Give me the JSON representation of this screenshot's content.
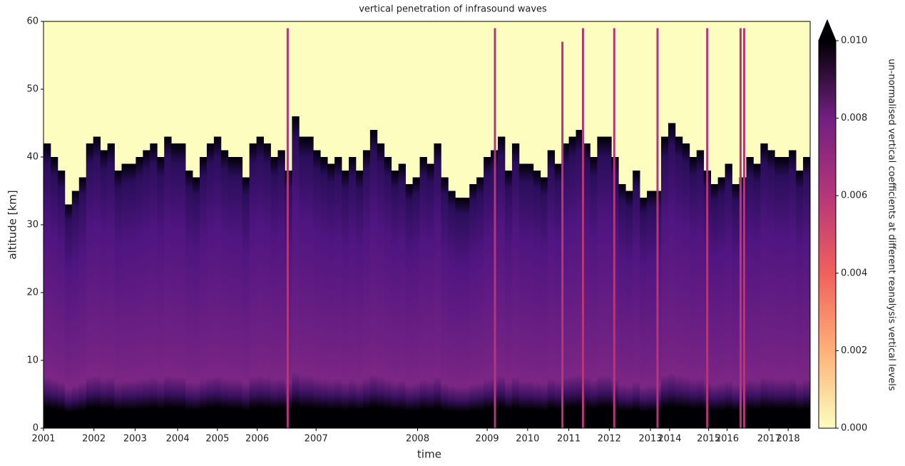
{
  "chart_data": {
    "type": "heatmap",
    "title": "vertical penetration of infrasound waves",
    "xlabel": "time",
    "ylabel": "altitude [km]",
    "background": "#fcfdbf",
    "xlim": [
      0,
      108
    ],
    "xticks": [
      {
        "value": 0,
        "label": "2001"
      },
      {
        "value": 7.1,
        "label": "2002"
      },
      {
        "value": 12.9,
        "label": "2003"
      },
      {
        "value": 18.9,
        "label": "2004"
      },
      {
        "value": 24.5,
        "label": "2005"
      },
      {
        "value": 30.1,
        "label": "2006"
      },
      {
        "value": 38.4,
        "label": "2007"
      },
      {
        "value": 52.7,
        "label": "2008"
      },
      {
        "value": 62.5,
        "label": "2009"
      },
      {
        "value": 68.2,
        "label": "2010"
      },
      {
        "value": 74,
        "label": "2011"
      },
      {
        "value": 79.7,
        "label": "2012"
      },
      {
        "value": 85.5,
        "label": "2013"
      },
      {
        "value": 88.2,
        "label": "2014"
      },
      {
        "value": 93.7,
        "label": "2015"
      },
      {
        "value": 96.3,
        "label": "2016"
      },
      {
        "value": 102.2,
        "label": "2017"
      },
      {
        "value": 104.9,
        "label": "2018"
      }
    ],
    "ylim": [
      0,
      60
    ],
    "yticks": [
      0,
      10,
      20,
      30,
      40,
      50,
      60
    ],
    "values": [
      42,
      40,
      38,
      33,
      35,
      37,
      42,
      43,
      41,
      42,
      38,
      39,
      39,
      40,
      41,
      42,
      40,
      43,
      42,
      42,
      38,
      37,
      40,
      42,
      43,
      41,
      40,
      40,
      37,
      42,
      43,
      42,
      40,
      41,
      38,
      46,
      43,
      43,
      41,
      40,
      39,
      40,
      38,
      40,
      38,
      41,
      44,
      42,
      40,
      38,
      39,
      36,
      37,
      40,
      39,
      42,
      37,
      35,
      34,
      34,
      36,
      37,
      40,
      41,
      43,
      38,
      42,
      39,
      39,
      38,
      37,
      41,
      39,
      42,
      43,
      44,
      42,
      40,
      43,
      43,
      40,
      36,
      35,
      38,
      34,
      35,
      35,
      43,
      45,
      43,
      42,
      40,
      41,
      38,
      36,
      37,
      39,
      36,
      37,
      40,
      39,
      42,
      41,
      40,
      40,
      41,
      38,
      40
    ],
    "spikes": {
      "color": "#b5367a",
      "x": [
        34.4,
        63.6,
        73.1,
        76,
        80.4,
        86.5,
        93.5,
        98.2,
        98.7
      ],
      "values": [
        59,
        59,
        57,
        59,
        59,
        59,
        59,
        59,
        59
      ]
    },
    "colorbar": {
      "label": "un-normalised vertical coefficients at different reanalysis vertical levels",
      "lim": [
        0,
        0.01
      ],
      "ticks": [
        {
          "value": 0,
          "label": "0.000"
        },
        {
          "value": 0.002,
          "label": "0.002"
        },
        {
          "value": 0.004,
          "label": "0.004"
        },
        {
          "value": 0.006,
          "label": "0.006"
        },
        {
          "value": 0.008,
          "label": "0.008"
        },
        {
          "value": 0.01,
          "label": "0.010"
        }
      ],
      "colors": [
        "#fcfdbf",
        "#feb078",
        "#f1605d",
        "#b5367a",
        "#721f81",
        "#000004"
      ]
    }
  }
}
